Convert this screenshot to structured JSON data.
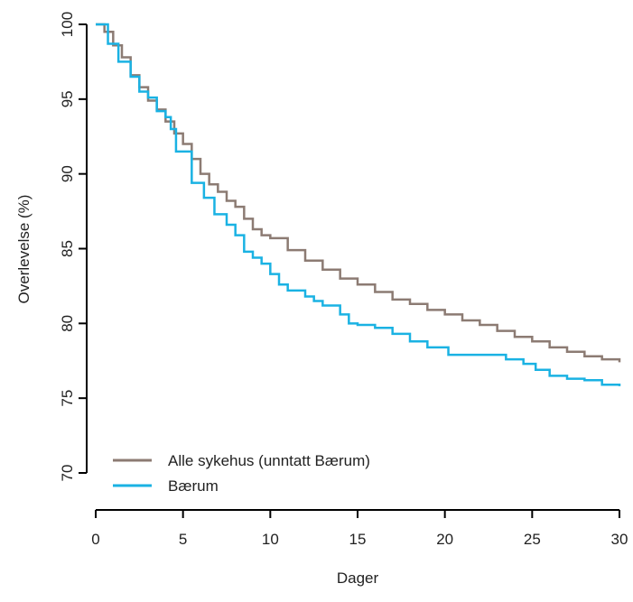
{
  "chart_data": {
    "type": "line",
    "drawstyle": "steps-post",
    "xlabel": "Dager",
    "ylabel": "Overlevelse (%)",
    "xlim": [
      0,
      30
    ],
    "xticks": [
      0,
      5,
      10,
      15,
      20,
      25,
      30
    ],
    "ylim": [
      70,
      100
    ],
    "yticks": [
      70,
      75,
      80,
      85,
      90,
      95,
      100
    ],
    "legend": "lower left",
    "series": [
      {
        "name": "Alle sykehus (unntatt Bærum)",
        "color": "#8c7b73",
        "x": [
          0,
          0.5,
          1,
          1.5,
          2,
          2.5,
          3,
          3.5,
          4,
          4.5,
          5,
          5.5,
          6,
          6.5,
          7,
          7.5,
          8,
          8.5,
          9,
          9.5,
          10,
          11,
          12,
          13,
          14,
          15,
          16,
          17,
          18,
          19,
          20,
          21,
          22,
          23,
          24,
          25,
          26,
          27,
          28,
          29,
          30
        ],
        "values": [
          100,
          99.5,
          98.6,
          97.8,
          96.6,
          95.8,
          94.9,
          94.3,
          93.5,
          92.7,
          92.0,
          91.0,
          90.0,
          89.3,
          88.8,
          88.2,
          87.8,
          87.0,
          86.3,
          85.9,
          85.7,
          84.9,
          84.2,
          83.6,
          83.0,
          82.6,
          82.1,
          81.6,
          81.3,
          80.9,
          80.6,
          80.2,
          79.9,
          79.5,
          79.1,
          78.8,
          78.4,
          78.1,
          77.8,
          77.6,
          77.4
        ]
      },
      {
        "name": "Bærum",
        "color": "#1ab2e3",
        "x": [
          0,
          0.7,
          1.3,
          2,
          2.5,
          3,
          3.5,
          4,
          4.3,
          4.6,
          5.2,
          5.5,
          6.2,
          6.8,
          7.5,
          8,
          8.5,
          9,
          9.5,
          10,
          10.5,
          11,
          12,
          12.5,
          13,
          14,
          14.5,
          15,
          16,
          17,
          18,
          19,
          20.2,
          23.5,
          24.5,
          25.2,
          26,
          27,
          28,
          29,
          30
        ],
        "values": [
          100,
          98.7,
          97.5,
          96.5,
          95.5,
          95.1,
          94.2,
          93.8,
          93.0,
          91.5,
          91.5,
          89.4,
          88.4,
          87.3,
          86.6,
          85.9,
          84.8,
          84.4,
          84.0,
          83.3,
          82.6,
          82.2,
          81.8,
          81.5,
          81.2,
          80.6,
          80.0,
          79.9,
          79.7,
          79.3,
          78.8,
          78.4,
          77.9,
          77.6,
          77.3,
          76.9,
          76.5,
          76.3,
          76.2,
          75.9,
          75.8
        ]
      }
    ]
  }
}
